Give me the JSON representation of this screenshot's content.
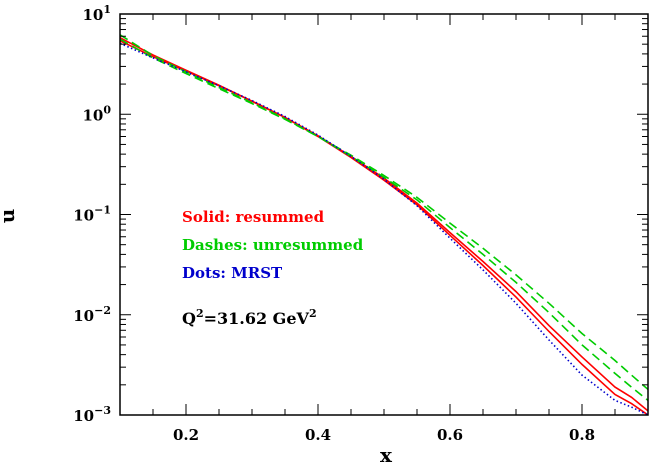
{
  "chart_data": {
    "type": "line",
    "x_label": "x",
    "y_label": "u",
    "y_scale": "log",
    "xlim": [
      0.1,
      0.9
    ],
    "ylim": [
      0.001,
      10
    ],
    "x_ticks": [
      "0.2",
      "0.4",
      "0.6",
      "0.8"
    ],
    "y_ticks": [
      {
        "value": 10,
        "base": "10",
        "exp": "1"
      },
      {
        "value": 1,
        "base": "10",
        "exp": "0"
      },
      {
        "value": 0.1,
        "base": "10",
        "exp": "−1"
      },
      {
        "value": 0.01,
        "base": "10",
        "exp": "−2"
      },
      {
        "value": 0.001,
        "base": "10",
        "exp": "−3"
      }
    ],
    "legend": {
      "entries": [
        {
          "label": "Solid: resummed",
          "color": "#ff0000"
        },
        {
          "label": "Dashes: unresummed",
          "color": "#00cc00"
        },
        {
          "label": "Dots: MRST",
          "color": "#0000cc"
        }
      ]
    },
    "annotation": {
      "prefix": "Q",
      "exp1": "2",
      "middle": "=31.62 GeV",
      "exp2": "2"
    },
    "series": [
      {
        "style": "solid",
        "color": "#ff0000",
        "x": [
          0.1,
          0.15,
          0.2,
          0.25,
          0.3,
          0.35,
          0.4,
          0.45,
          0.5,
          0.55,
          0.6,
          0.65,
          0.7,
          0.75,
          0.8,
          0.85,
          0.875,
          0.9
        ],
        "y": [
          5.8,
          3.9,
          2.75,
          1.95,
          1.35,
          0.93,
          0.6,
          0.37,
          0.22,
          0.125,
          0.062,
          0.031,
          0.015,
          0.0068,
          0.0032,
          0.0016,
          0.0013,
          0.001
        ]
      },
      {
        "style": "solid",
        "color": "#ff0000",
        "x": [
          0.1,
          0.15,
          0.2,
          0.25,
          0.3,
          0.35,
          0.4,
          0.45,
          0.5,
          0.55,
          0.6,
          0.65,
          0.7,
          0.75,
          0.8,
          0.85,
          0.875,
          0.9
        ],
        "y": [
          5.4,
          3.75,
          2.7,
          1.92,
          1.35,
          0.93,
          0.61,
          0.38,
          0.23,
          0.13,
          0.066,
          0.034,
          0.017,
          0.0078,
          0.0038,
          0.0019,
          0.0015,
          0.0011
        ]
      },
      {
        "style": "dashed",
        "color": "#00cc00",
        "x": [
          0.1,
          0.15,
          0.2,
          0.25,
          0.3,
          0.35,
          0.4,
          0.45,
          0.5,
          0.55,
          0.6,
          0.65,
          0.7,
          0.75,
          0.8,
          0.85,
          0.875,
          0.9
        ],
        "y": [
          6.2,
          3.85,
          2.65,
          1.85,
          1.3,
          0.9,
          0.6,
          0.38,
          0.235,
          0.14,
          0.074,
          0.04,
          0.021,
          0.0105,
          0.005,
          0.0026,
          0.0019,
          0.0014
        ]
      },
      {
        "style": "dashed",
        "color": "#00cc00",
        "x": [
          0.1,
          0.15,
          0.2,
          0.25,
          0.3,
          0.35,
          0.4,
          0.45,
          0.5,
          0.55,
          0.6,
          0.65,
          0.7,
          0.75,
          0.8,
          0.85,
          0.875,
          0.9
        ],
        "y": [
          5.6,
          3.65,
          2.55,
          1.8,
          1.28,
          0.89,
          0.6,
          0.39,
          0.245,
          0.148,
          0.082,
          0.046,
          0.025,
          0.013,
          0.0065,
          0.0035,
          0.0025,
          0.0018
        ]
      },
      {
        "style": "dotted",
        "color": "#0000cc",
        "x": [
          0.1,
          0.15,
          0.2,
          0.25,
          0.3,
          0.35,
          0.4,
          0.45,
          0.5,
          0.55,
          0.6,
          0.65,
          0.7,
          0.75,
          0.8,
          0.85,
          0.875,
          0.9
        ],
        "y": [
          5.1,
          3.65,
          2.65,
          1.92,
          1.37,
          0.95,
          0.62,
          0.38,
          0.225,
          0.122,
          0.058,
          0.028,
          0.013,
          0.0056,
          0.0025,
          0.0014,
          0.0012,
          0.001
        ]
      }
    ]
  }
}
